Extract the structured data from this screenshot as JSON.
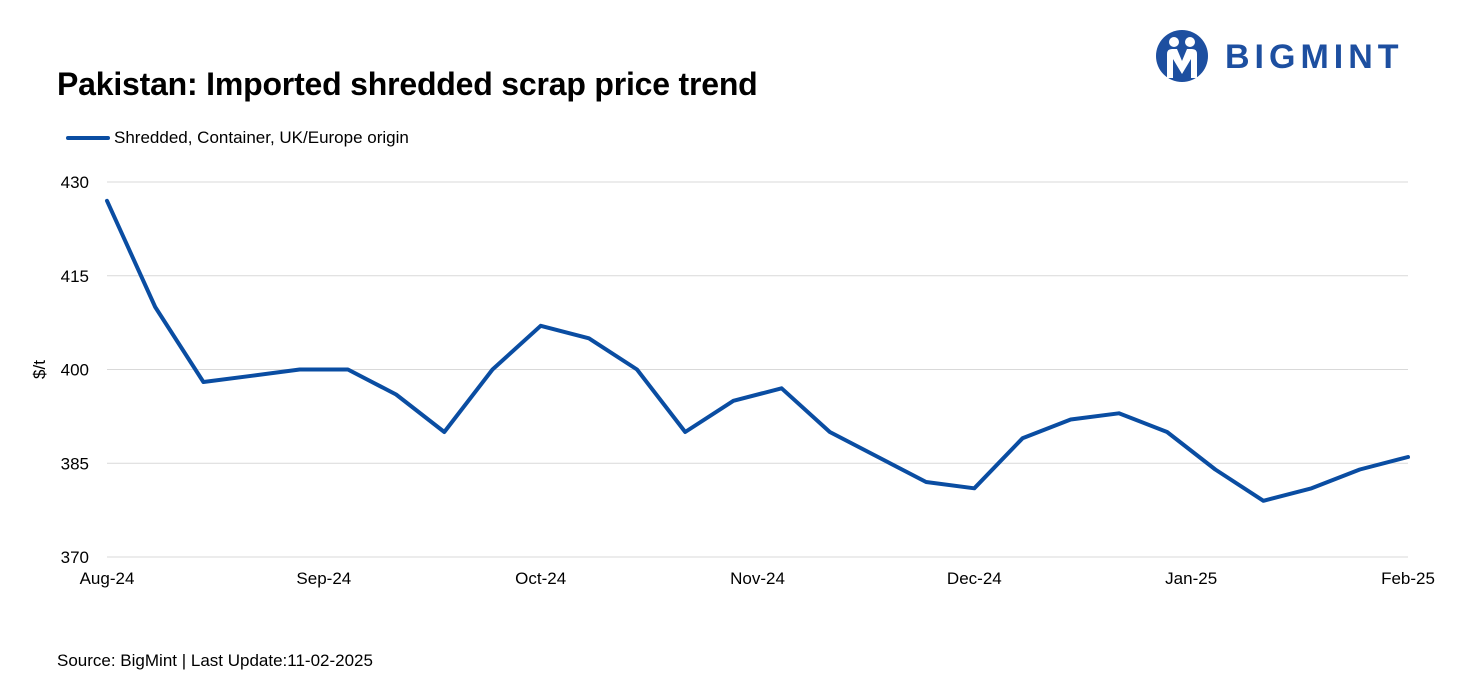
{
  "header": {
    "title": "Pakistan: Imported shredded scrap price trend",
    "brand": "BIGMINT"
  },
  "footer": {
    "source": "Source: BigMint | Last Update:11-02-2025"
  },
  "colors": {
    "series": "#0a4da2",
    "brand": "#1d4fa0",
    "grid": "#d9d9d9"
  },
  "chart_data": {
    "type": "line",
    "title": "Pakistan: Imported shredded scrap price trend",
    "ylabel": "$/t",
    "xlabel": "",
    "ylim": [
      370,
      430
    ],
    "yticks": [
      370,
      385,
      400,
      415,
      430
    ],
    "xtick_labels": [
      "Aug-24",
      "Sep-24",
      "Oct-24",
      "Nov-24",
      "Dec-24",
      "Jan-25",
      "Feb-25"
    ],
    "grid": true,
    "legend": "top-left",
    "series": [
      {
        "name": "Shredded, Container, UK/Europe origin",
        "values": [
          427,
          410,
          398,
          399,
          400,
          400,
          396,
          390,
          400,
          407,
          405,
          400,
          390,
          395,
          397,
          390,
          386,
          382,
          381,
          389,
          392,
          393,
          390,
          384,
          379,
          381,
          384,
          386
        ]
      }
    ]
  }
}
